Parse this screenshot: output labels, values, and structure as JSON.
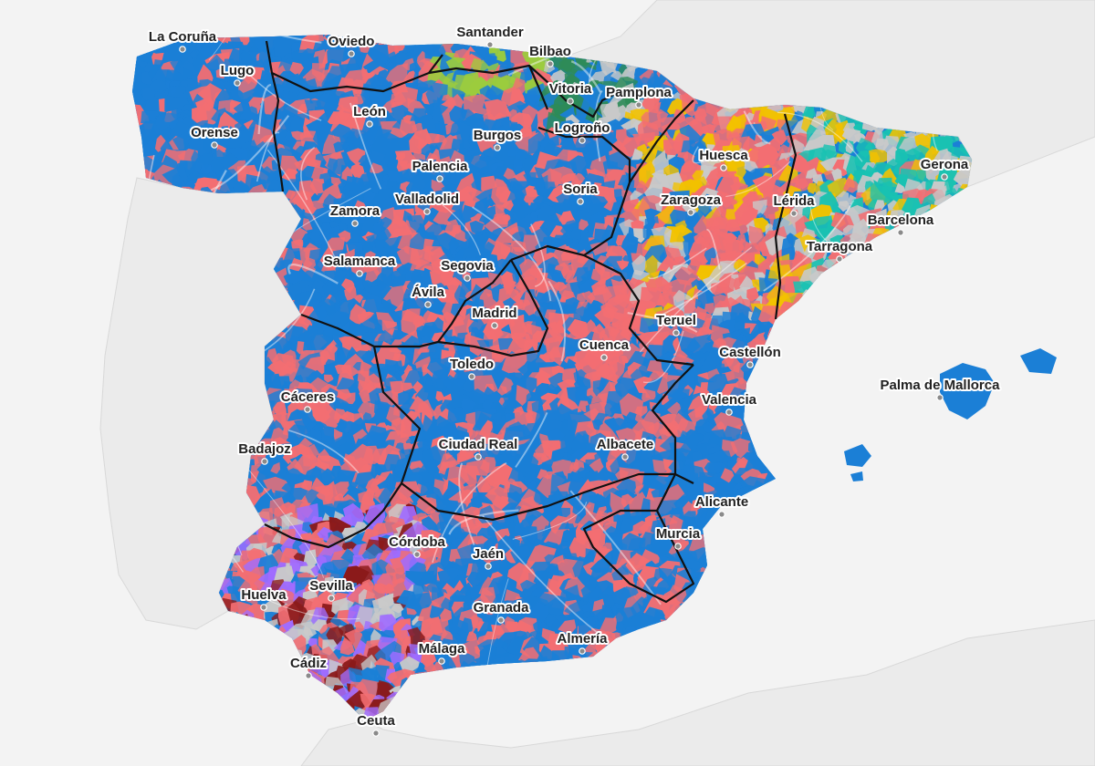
{
  "map": {
    "background_color": "#f3f3f3",
    "land_color": "#ededed",
    "colors": {
      "pp": "#1b7fd6",
      "psoe": "#f36e72",
      "catalan": "#19c2b2",
      "basque": "#2e8b57",
      "yellow": "#f2c200",
      "green": "#9ccc3d",
      "purple": "#a06cff",
      "darkred": "#8b1a1a",
      "grey": "#c9c9c9"
    }
  },
  "cities": [
    {
      "name": "La Coruña"
    },
    {
      "name": "Oviedo"
    },
    {
      "name": "Santander"
    },
    {
      "name": "Bilbao"
    },
    {
      "name": "Lugo"
    },
    {
      "name": "Vitoria"
    },
    {
      "name": "Pamplona"
    },
    {
      "name": "León"
    },
    {
      "name": "Orense"
    },
    {
      "name": "Burgos"
    },
    {
      "name": "Logroño"
    },
    {
      "name": "Huesca"
    },
    {
      "name": "Palencia"
    },
    {
      "name": "Gerona"
    },
    {
      "name": "Soria"
    },
    {
      "name": "Zaragoza"
    },
    {
      "name": "Lérida"
    },
    {
      "name": "Valladolid"
    },
    {
      "name": "Zamora"
    },
    {
      "name": "Barcelona"
    },
    {
      "name": "Tarragona"
    },
    {
      "name": "Salamanca"
    },
    {
      "name": "Segovia"
    },
    {
      "name": "Ávila"
    },
    {
      "name": "Madrid"
    },
    {
      "name": "Teruel"
    },
    {
      "name": "Cuenca"
    },
    {
      "name": "Castellón"
    },
    {
      "name": "Toledo"
    },
    {
      "name": "Palma de Mallorca"
    },
    {
      "name": "Cáceres"
    },
    {
      "name": "Valencia"
    },
    {
      "name": "Badajoz"
    },
    {
      "name": "Ciudad Real"
    },
    {
      "name": "Albacete"
    },
    {
      "name": "Alicante"
    },
    {
      "name": "Córdoba"
    },
    {
      "name": "Jaén"
    },
    {
      "name": "Murcia"
    },
    {
      "name": "Sevilla"
    },
    {
      "name": "Huelva"
    },
    {
      "name": "Granada"
    },
    {
      "name": "Almería"
    },
    {
      "name": "Málaga"
    },
    {
      "name": "Cádiz"
    },
    {
      "name": "Ceuta"
    }
  ]
}
